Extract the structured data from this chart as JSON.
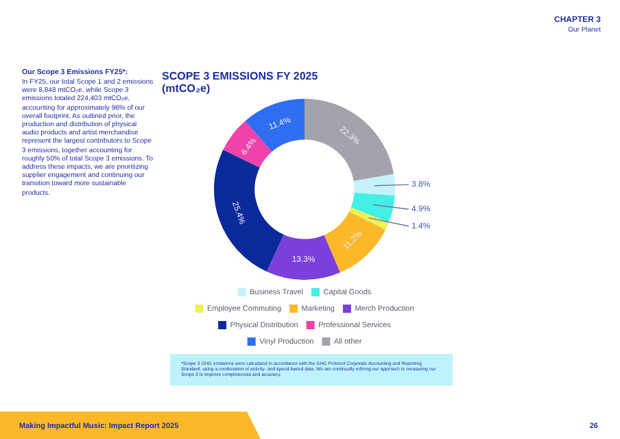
{
  "chart_data": {
    "type": "donut",
    "title": "SCOPE 3 EMISSIONS FY 2025 (mtCO₂e)",
    "categories": [
      "Business Travel",
      "Capital Goods",
      "Employee Commuting",
      "Marketing",
      "Merch Production",
      "Physical Distribution",
      "Professional Services",
      "Vinyl Production",
      "All other"
    ],
    "values": [
      3.8,
      4.9,
      1.4,
      11.2,
      13.3,
      25.4,
      6.4,
      11.4,
      22.3
    ],
    "value_labels": [
      "3.8%",
      "4.9%",
      "1.4%",
      "11.2%",
      "13.3%",
      "25.4%",
      "6.4%",
      "11.4%",
      "22.3%"
    ],
    "colors": [
      "#c5f2fb",
      "#44efe6",
      "#f2f055",
      "#fbb829",
      "#7b3fdc",
      "#0b2a9a",
      "#f042a8",
      "#2f6ef0",
      "#a3a3ab"
    ],
    "legend": "bottom",
    "annotations": [
      "CHAPTER 3",
      "Our Planet",
      "Our Scope 3 Emissions FY25*:",
      "In FY25, our total Scope 1 and 2 emissions were 8,848 mtCO₂e, while Scope 3 emissions totaled 224,403 mtCO₂e, accounting for approximately 96% of our overall footprint. As outlined prior, the production and distribution of physical audio products and artist merchandise represent the largest contributors to Scope 3 emissions, together accounting for roughly 50% of total Scope 3 emissions. To address these impacts, we are prioritizing supplier engagement and continuing our transition toward more sustainable products.",
      "*Scope 3 GHG emissions were calculated in accordance with the GHG Protocol Corporate Accounting and Reporting Standard, using a combination of activity- and spend-based data. We are continually refining our approach to measuring our Scope 3 to improve completeness and accuracy.",
      "Making Impactful Music: Impact Report 2025",
      "26"
    ]
  }
}
